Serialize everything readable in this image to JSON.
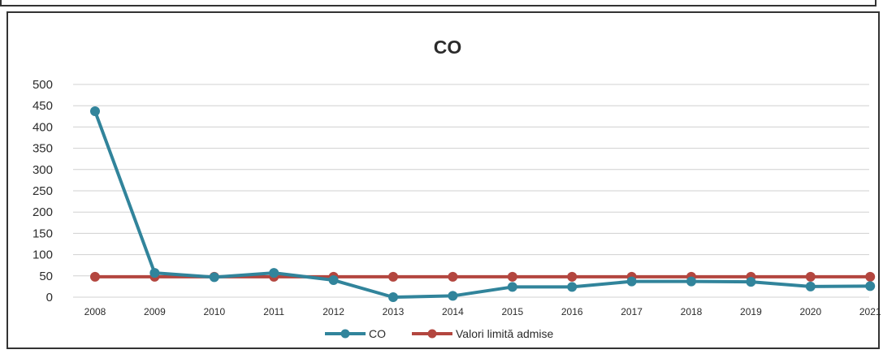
{
  "chart_data": {
    "type": "line",
    "title": "CO",
    "categories": [
      "2008",
      "2009",
      "2010",
      "2011",
      "2012",
      "2013",
      "2014",
      "2015",
      "2016",
      "2017",
      "2018",
      "2019",
      "2020",
      "2021"
    ],
    "series": [
      {
        "name": "CO",
        "color": "#31849B",
        "values": [
          437,
          57,
          47,
          57,
          40,
          0,
          3,
          24,
          24,
          37,
          37,
          36,
          25,
          26
        ]
      },
      {
        "name": "Valori limită admise",
        "color": "#B3463F",
        "values": [
          48,
          48,
          48,
          48,
          48,
          48,
          48,
          48,
          48,
          48,
          48,
          48,
          48,
          48
        ]
      }
    ],
    "yticks": [
      "0",
      "50",
      "100",
      "150",
      "200",
      "250",
      "300",
      "350",
      "400",
      "450",
      "500"
    ],
    "ylim": [
      0,
      500
    ],
    "xlabel": "",
    "ylabel": "",
    "grid": "horizontal",
    "legend_position": "bottom"
  }
}
